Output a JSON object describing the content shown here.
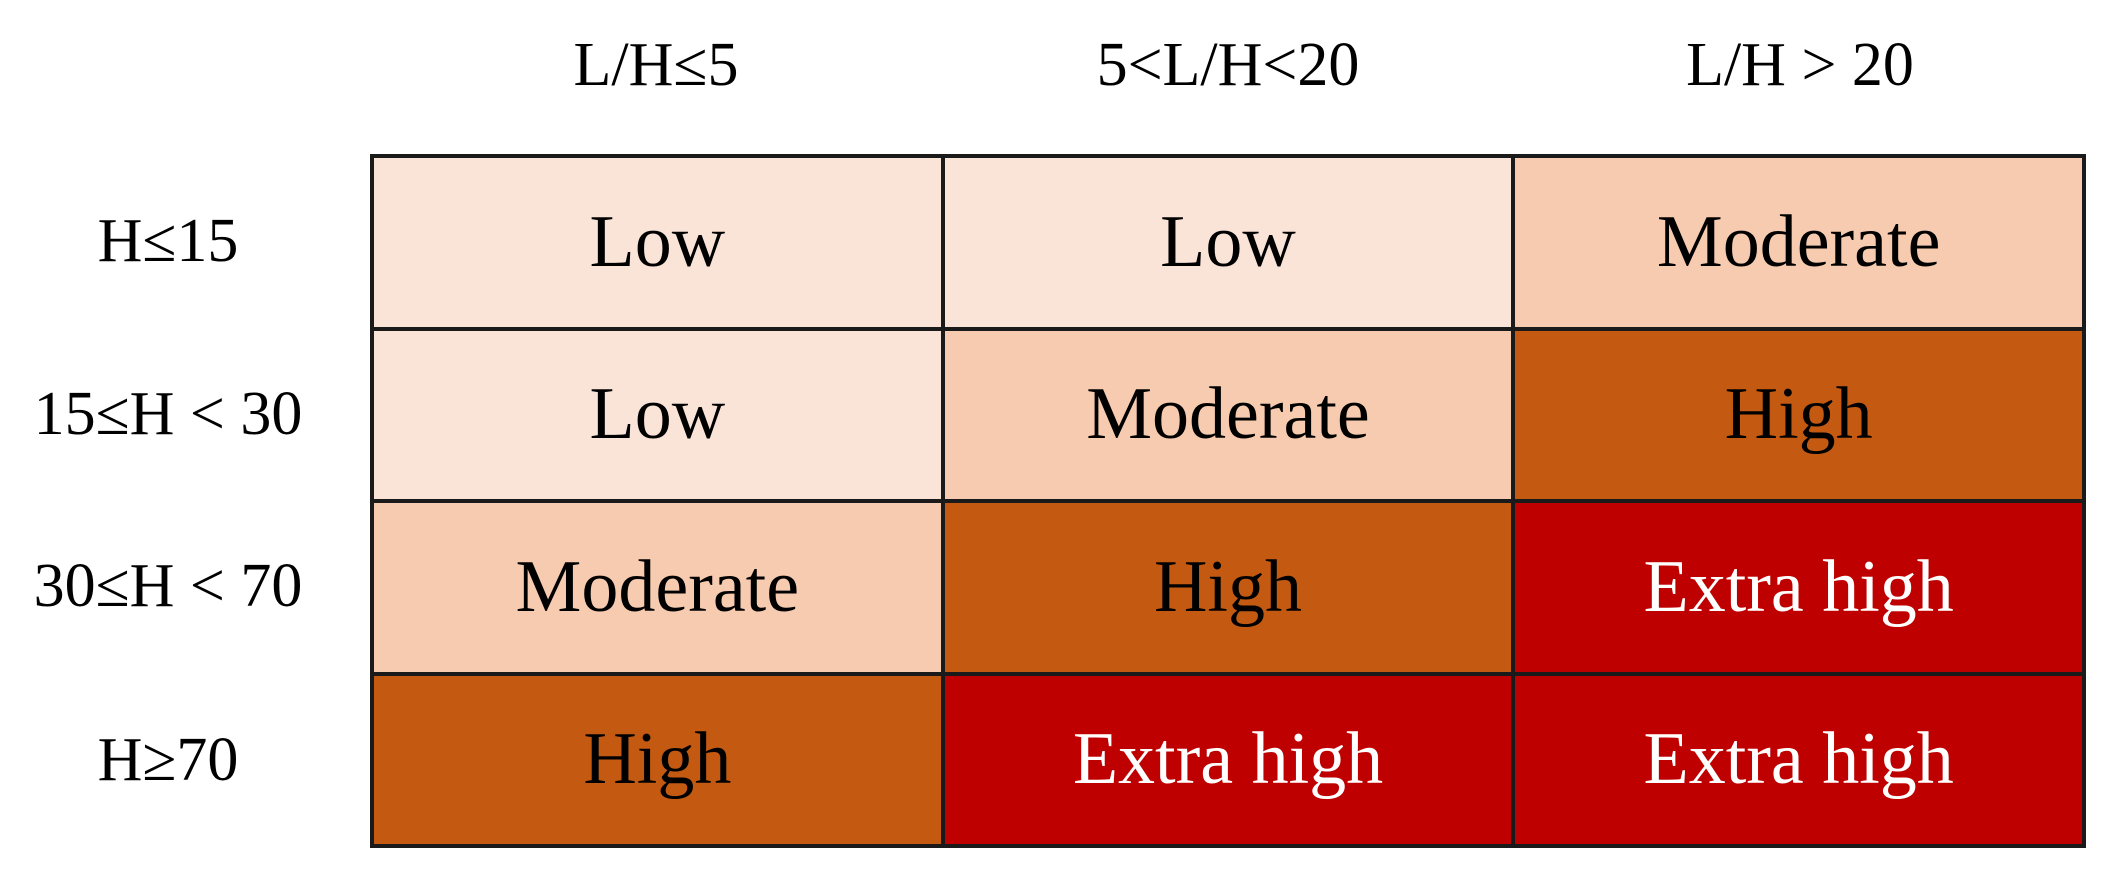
{
  "matrix": {
    "column_headers": [
      "L/H≤5",
      "5<L/H<20",
      "L/H > 20"
    ],
    "row_headers": [
      "H≤15",
      "15≤H < 30",
      "30≤H < 70",
      "H≥70"
    ],
    "rows": [
      [
        "Low",
        "Low",
        "Moderate"
      ],
      [
        "Low",
        "Moderate",
        "High"
      ],
      [
        "Moderate",
        "High",
        "Extra high"
      ],
      [
        "High",
        "Extra high",
        "Extra high"
      ]
    ]
  },
  "level_colors": {
    "Low": "#FAE4D8",
    "Moderate": "#F7CBB0",
    "High": "#C45A12",
    "Extra high": "#BF0000"
  },
  "text_colors": {
    "dark": "#000000",
    "light": "#FFFFFF"
  }
}
